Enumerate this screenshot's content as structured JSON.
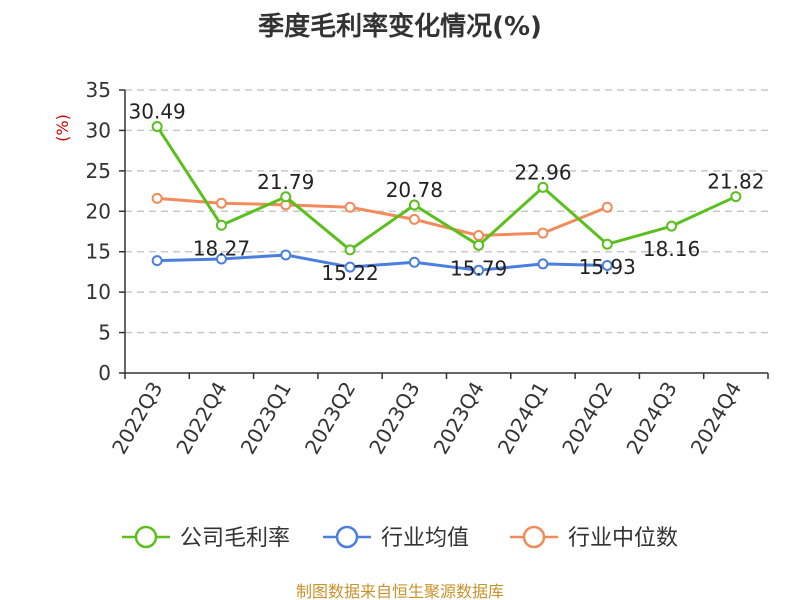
{
  "title": "季度毛利率变化情况(%)",
  "source": "制图数据来自恒生聚源数据库",
  "chart_data": {
    "type": "line",
    "title": "季度毛利率变化情况(%)",
    "ylabel": "(%)",
    "xlabel": "",
    "ylim": [
      0,
      35
    ],
    "yticks": [
      0,
      5,
      10,
      15,
      20,
      25,
      30,
      35
    ],
    "grid": true,
    "legend": "bottom",
    "categories": [
      "2022Q3",
      "2022Q4",
      "2023Q1",
      "2023Q2",
      "2023Q3",
      "2023Q4",
      "2024Q1",
      "2024Q2",
      "2024Q3",
      "2024Q4"
    ],
    "series": [
      {
        "name": "公司毛利率",
        "color": "#5bc01e",
        "values": [
          30.49,
          18.27,
          21.79,
          15.22,
          20.78,
          15.79,
          22.96,
          15.93,
          18.16,
          21.82
        ],
        "labels": [
          "30.49",
          "18.27",
          "21.79",
          "15.22",
          "20.78",
          "15.79",
          "22.96",
          "15.93",
          "18.16",
          "21.82"
        ]
      },
      {
        "name": "行业均值",
        "color": "#4a7fe0",
        "values": [
          13.9,
          14.1,
          14.6,
          13.1,
          13.7,
          12.7,
          13.5,
          13.3,
          null,
          null
        ]
      },
      {
        "name": "行业中位数",
        "color": "#f28b59",
        "values": [
          21.6,
          21.0,
          20.8,
          20.5,
          19.0,
          17.0,
          17.3,
          20.5,
          null,
          null
        ]
      }
    ]
  }
}
